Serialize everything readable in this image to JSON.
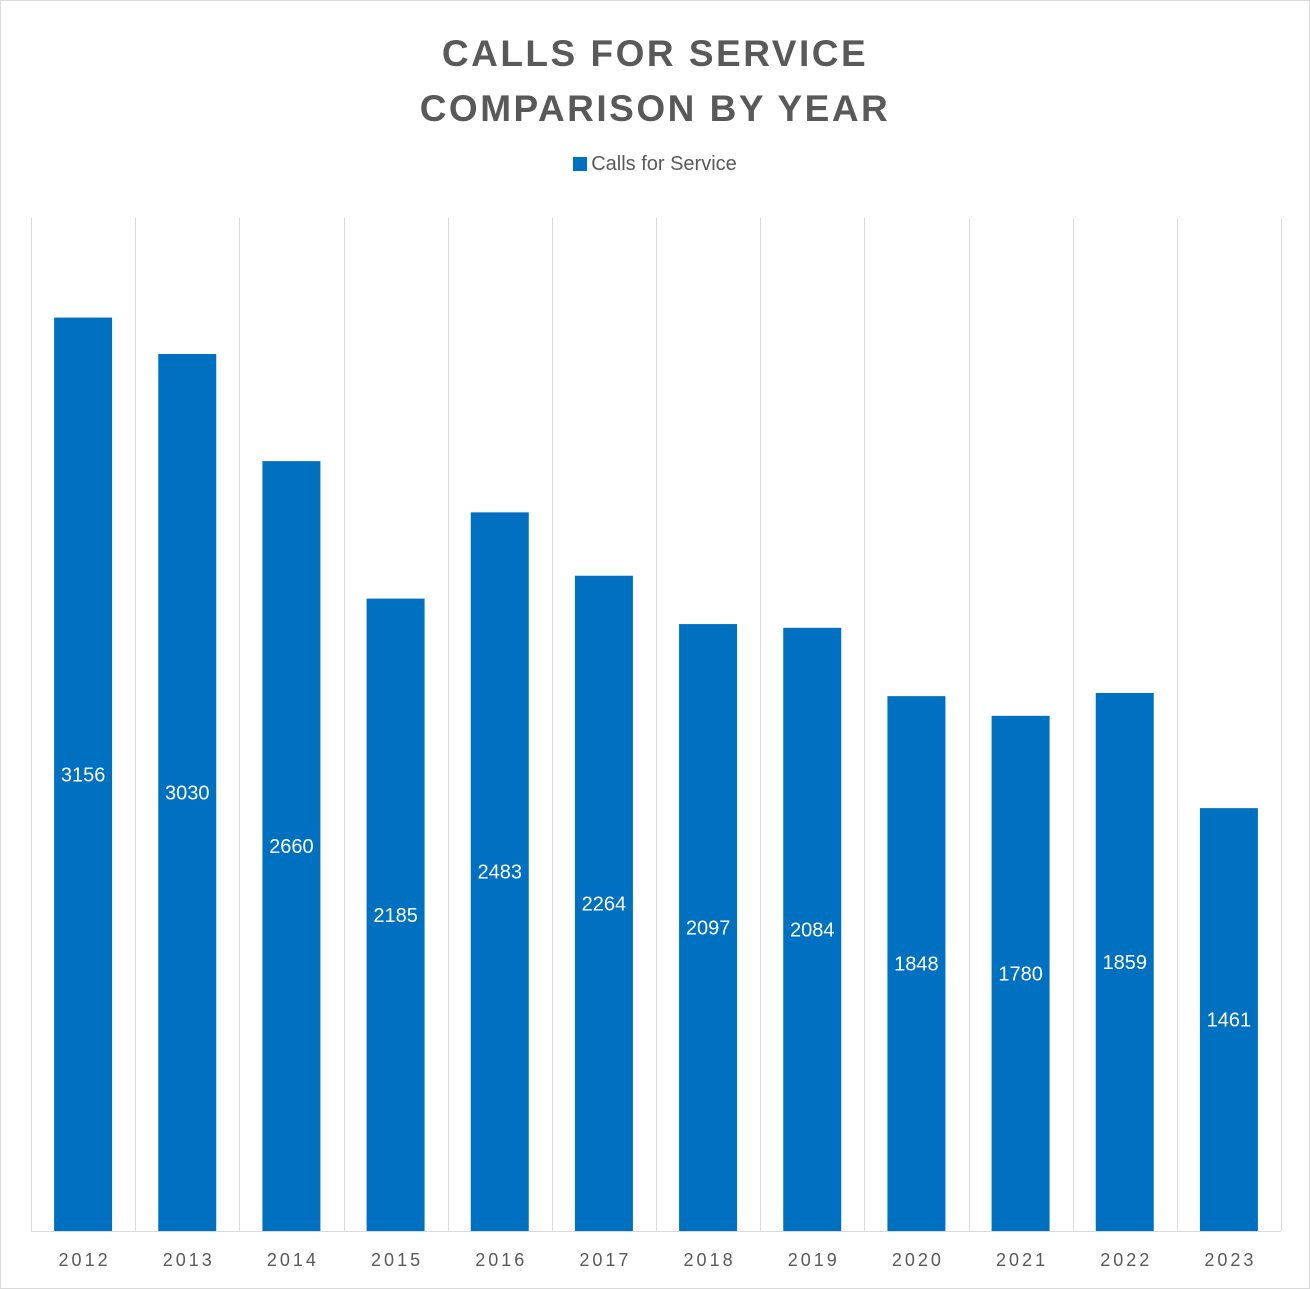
{
  "chart_data": {
    "type": "bar",
    "title": [
      "CALLS FOR SERVICE",
      "COMPARISON BY YEAR"
    ],
    "xlabel": "",
    "ylabel": "",
    "categories": [
      "2012",
      "2013",
      "2014",
      "2015",
      "2016",
      "2017",
      "2018",
      "2019",
      "2020",
      "2021",
      "2022",
      "2023"
    ],
    "series": [
      {
        "name": "Calls for Service",
        "values": [
          3156,
          3030,
          2660,
          2185,
          2483,
          2264,
          2097,
          2084,
          1848,
          1780,
          1859,
          1461
        ],
        "color": "#0070C0"
      }
    ],
    "ylim": [
      0,
      3500
    ],
    "legend": "top",
    "grid": "vertical category separators",
    "data_labels": "inside-center",
    "gridline_color": "#d9d9d9"
  }
}
